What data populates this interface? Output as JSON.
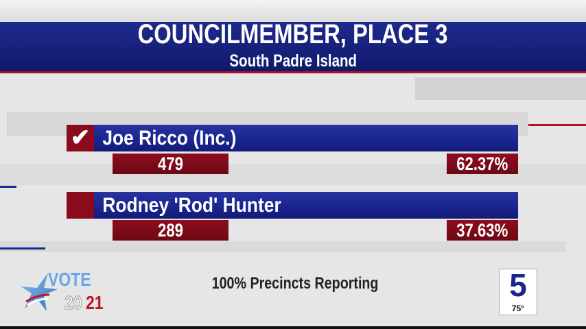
{
  "race": {
    "title": "COUNCILMEMBER, PLACE 3",
    "subtitle": "South Padre Island"
  },
  "candidates": [
    {
      "name": "Joe Ricco (Inc.)",
      "votes": "479",
      "percent": "62.37%",
      "winner": true
    },
    {
      "name": "Rodney 'Rod' Hunter",
      "votes": "289",
      "percent": "37.63%",
      "winner": false
    }
  ],
  "footer": {
    "precincts": "100% Precincts Reporting"
  },
  "logo": {
    "vote": "VOTE",
    "year_a": "20",
    "year_b": "21"
  },
  "station": {
    "channel": "5",
    "temperature": "75°"
  },
  "colors": {
    "blue": "#1a2590",
    "red": "#8a0c1c",
    "background": "#e6e6e6"
  },
  "icons": {
    "winner": "checkmark-icon"
  }
}
